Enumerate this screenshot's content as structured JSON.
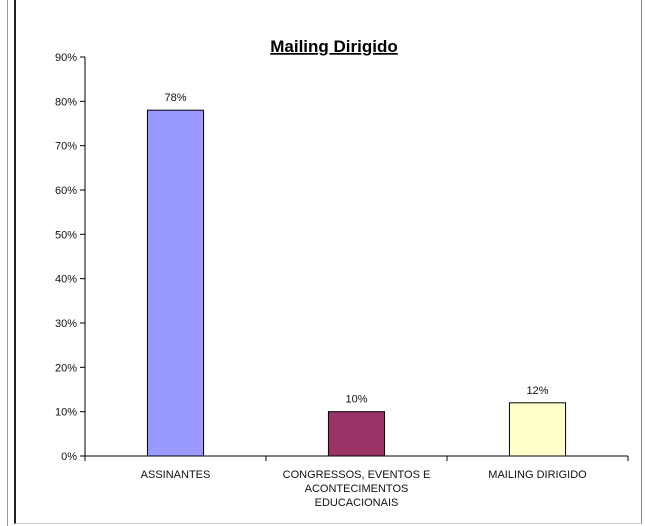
{
  "chart_data": {
    "type": "bar",
    "title": "Mailing Dirigido",
    "categories": [
      [
        "ASSINANTES"
      ],
      [
        "CONGRESSOS, EVENTOS E",
        "ACONTECIMENTOS",
        "EDUCACIONAIS"
      ],
      [
        "MAILING DIRIGIDO"
      ]
    ],
    "values": [
      78,
      10,
      12
    ],
    "data_labels": [
      "78%",
      "10%",
      "12%"
    ],
    "colors": [
      "#9999ff",
      "#993366",
      "#ffffcc"
    ],
    "ylim": [
      0,
      90
    ],
    "yticks": [
      "0%",
      "10%",
      "20%",
      "30%",
      "40%",
      "50%",
      "60%",
      "70%",
      "80%",
      "90%"
    ],
    "grid": false,
    "legend": "none",
    "xlabel": "",
    "ylabel": ""
  }
}
